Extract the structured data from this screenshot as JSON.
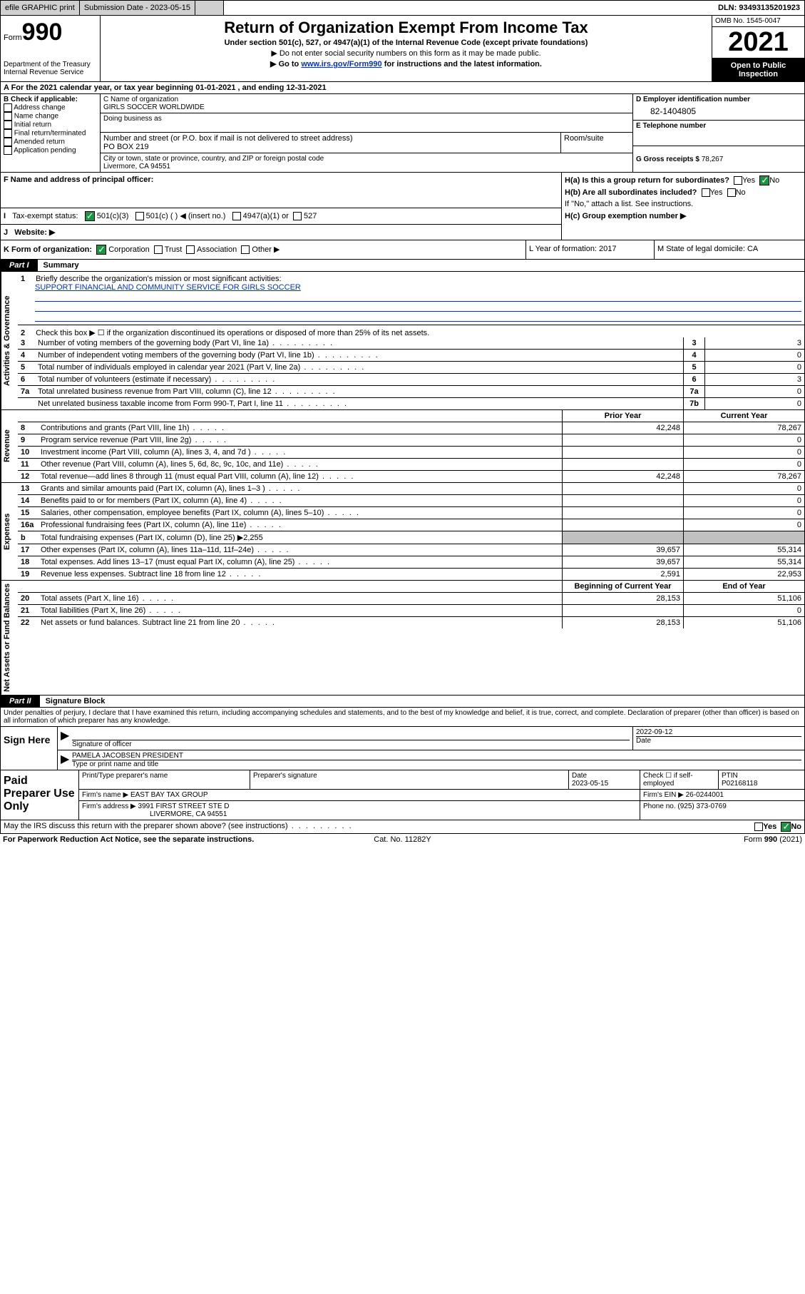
{
  "topbar": {
    "efile": "efile GRAPHIC print",
    "sub_label": "Submission Date - 2023-05-15",
    "dln": "DLN: 93493135201923"
  },
  "header": {
    "form_prefix": "Form",
    "form_number": "990",
    "dept": "Department of the Treasury",
    "irs": "Internal Revenue Service",
    "title": "Return of Organization Exempt From Income Tax",
    "sub1": "Under section 501(c), 527, or 4947(a)(1) of the Internal Revenue Code (except private foundations)",
    "sub2": "▶ Do not enter social security numbers on this form as it may be made public.",
    "sub3_pre": "▶ Go to ",
    "sub3_link": "www.irs.gov/Form990",
    "sub3_post": " for instructions and the latest information.",
    "omb": "OMB No. 1545-0047",
    "year": "2021",
    "otp": "Open to Public Inspection"
  },
  "line_a": "A For the 2021 calendar year, or tax year beginning 01-01-2021   , and ending 12-31-2021",
  "col_b": {
    "hdr": "B Check if applicable:",
    "items": [
      "Address change",
      "Name change",
      "Initial return",
      "Final return/terminated",
      "Amended return",
      "Application pending"
    ]
  },
  "col_c": {
    "name_label": "C Name of organization",
    "name": "GIRLS SOCCER WORLDWIDE",
    "dba_label": "Doing business as",
    "addr_label": "Number and street (or P.O. box if mail is not delivered to street address)",
    "addr": "PO BOX 219",
    "room_label": "Room/suite",
    "city_label": "City or town, state or province, country, and ZIP or foreign postal code",
    "city": "Livermore, CA   94551"
  },
  "col_d": {
    "ein_label": "D Employer identification number",
    "ein": "82-1404805",
    "tel_label": "E Telephone number",
    "gross_label": "G Gross receipts $",
    "gross": "78,267"
  },
  "row_f": {
    "label": "F Name and address of principal officer:"
  },
  "row_h": {
    "ha": "H(a)  Is this a group return for subordinates?",
    "hb": "H(b)  Are all subordinates included?",
    "hb_note": "If \"No,\" attach a list. See instructions.",
    "hc": "H(c)  Group exemption number ▶",
    "yes": "Yes",
    "no": "No"
  },
  "row_i": {
    "label": "Tax-exempt status:",
    "opts": [
      "501(c)(3)",
      "501(c) (  ) ◀ (insert no.)",
      "4947(a)(1) or",
      "527"
    ]
  },
  "row_j": {
    "label": "Website: ▶"
  },
  "row_k": {
    "label": "K Form of organization:",
    "opts": [
      "Corporation",
      "Trust",
      "Association",
      "Other ▶"
    ]
  },
  "row_l": "L Year of formation: 2017",
  "row_m": "M State of legal domicile: CA",
  "part1": {
    "tab": "Part I",
    "title": "Summary"
  },
  "mission": {
    "num": "1",
    "label": "Briefly describe the organization's mission or most significant activities:",
    "text": "SUPPORT FINANCIAL AND COMMUNITY SERVICE FOR GIRLS SOCCER"
  },
  "line2": {
    "num": "2",
    "label": "Check this box ▶ ☐  if the organization discontinued its operations or disposed of more than 25% of its net assets."
  },
  "gov_lines": [
    {
      "num": "3",
      "label": "Number of voting members of the governing body (Part VI, line 1a)",
      "box": "3",
      "val": "3"
    },
    {
      "num": "4",
      "label": "Number of independent voting members of the governing body (Part VI, line 1b)",
      "box": "4",
      "val": "0"
    },
    {
      "num": "5",
      "label": "Total number of individuals employed in calendar year 2021 (Part V, line 2a)",
      "box": "5",
      "val": "0"
    },
    {
      "num": "6",
      "label": "Total number of volunteers (estimate if necessary)",
      "box": "6",
      "val": "3"
    },
    {
      "num": "7a",
      "label": "Total unrelated business revenue from Part VIII, column (C), line 12",
      "box": "7a",
      "val": "0"
    },
    {
      "num": "",
      "label": "Net unrelated business taxable income from Form 990-T, Part I, line 11",
      "box": "7b",
      "val": "0"
    }
  ],
  "col_hdrs": {
    "prior": "Prior Year",
    "current": "Current Year",
    "begin": "Beginning of Current Year",
    "end": "End of Year"
  },
  "vtabs": {
    "gov": "Activities & Governance",
    "rev": "Revenue",
    "exp": "Expenses",
    "net": "Net Assets or Fund Balances"
  },
  "revenue": [
    {
      "num": "8",
      "label": "Contributions and grants (Part VIII, line 1h)",
      "prior": "42,248",
      "curr": "78,267"
    },
    {
      "num": "9",
      "label": "Program service revenue (Part VIII, line 2g)",
      "prior": "",
      "curr": "0"
    },
    {
      "num": "10",
      "label": "Investment income (Part VIII, column (A), lines 3, 4, and 7d )",
      "prior": "",
      "curr": "0"
    },
    {
      "num": "11",
      "label": "Other revenue (Part VIII, column (A), lines 5, 6d, 8c, 9c, 10c, and 11e)",
      "prior": "",
      "curr": "0"
    },
    {
      "num": "12",
      "label": "Total revenue—add lines 8 through 11 (must equal Part VIII, column (A), line 12)",
      "prior": "42,248",
      "curr": "78,267"
    }
  ],
  "expenses": [
    {
      "num": "13",
      "label": "Grants and similar amounts paid (Part IX, column (A), lines 1–3 )",
      "prior": "",
      "curr": "0"
    },
    {
      "num": "14",
      "label": "Benefits paid to or for members (Part IX, column (A), line 4)",
      "prior": "",
      "curr": "0"
    },
    {
      "num": "15",
      "label": "Salaries, other compensation, employee benefits (Part IX, column (A), lines 5–10)",
      "prior": "",
      "curr": "0"
    },
    {
      "num": "16a",
      "label": "Professional fundraising fees (Part IX, column (A), line 11e)",
      "prior": "",
      "curr": "0"
    },
    {
      "num": "b",
      "label": "Total fundraising expenses (Part IX, column (D), line 25) ▶2,255",
      "prior": "SHADE",
      "curr": "SHADE"
    },
    {
      "num": "17",
      "label": "Other expenses (Part IX, column (A), lines 11a–11d, 11f–24e)",
      "prior": "39,657",
      "curr": "55,314"
    },
    {
      "num": "18",
      "label": "Total expenses. Add lines 13–17 (must equal Part IX, column (A), line 25)",
      "prior": "39,657",
      "curr": "55,314"
    },
    {
      "num": "19",
      "label": "Revenue less expenses. Subtract line 18 from line 12",
      "prior": "2,591",
      "curr": "22,953"
    }
  ],
  "netassets": [
    {
      "num": "20",
      "label": "Total assets (Part X, line 16)",
      "prior": "28,153",
      "curr": "51,106"
    },
    {
      "num": "21",
      "label": "Total liabilities (Part X, line 26)",
      "prior": "",
      "curr": "0"
    },
    {
      "num": "22",
      "label": "Net assets or fund balances. Subtract line 21 from line 20",
      "prior": "28,153",
      "curr": "51,106"
    }
  ],
  "part2": {
    "tab": "Part II",
    "title": "Signature Block"
  },
  "sig_intro": "Under penalties of perjury, I declare that I have examined this return, including accompanying schedules and statements, and to the best of my knowledge and belief, it is true, correct, and complete. Declaration of preparer (other than officer) is based on all information of which preparer has any knowledge.",
  "sign": {
    "left": "Sign Here",
    "sig_label": "Signature of officer",
    "date_label": "Date",
    "date": "2022-09-12",
    "name": "PAMELA JACOBSEN  PRESIDENT",
    "name_label": "Type or print name and title"
  },
  "prep": {
    "left": "Paid Preparer Use Only",
    "h1": "Print/Type preparer's name",
    "h2": "Preparer's signature",
    "h3_label": "Date",
    "h3": "2023-05-15",
    "h4_label": "Check ☐ if self-employed",
    "h5_label": "PTIN",
    "h5": "P02168118",
    "firm_label": "Firm's name    ▶",
    "firm": "EAST BAY TAX GROUP",
    "ein_label": "Firm's EIN ▶",
    "ein": "26-0244001",
    "addr_label": "Firm's address ▶",
    "addr1": "3991 FIRST STREET STE D",
    "addr2": "LIVERMORE, CA  94551",
    "phone_label": "Phone no.",
    "phone": "(925) 373-0769"
  },
  "footer_q": "May the IRS discuss this return with the preparer shown above? (see instructions)",
  "bottom": {
    "l": "For Paperwork Reduction Act Notice, see the separate instructions.",
    "m": "Cat. No. 11282Y",
    "r": "Form 990 (2021)"
  }
}
